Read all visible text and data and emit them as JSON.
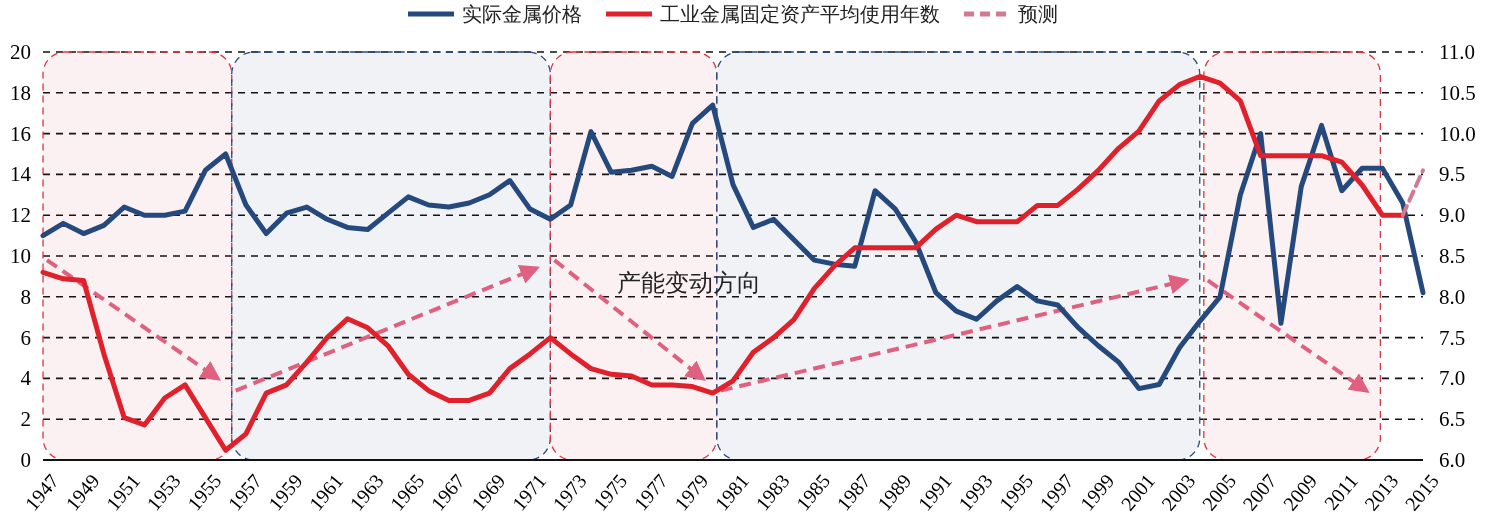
{
  "chart_data": {
    "type": "line",
    "legend": "top",
    "grid": "y",
    "annotations": [
      "产能变动方向"
    ],
    "x": [
      1947,
      1948,
      1949,
      1950,
      1951,
      1952,
      1953,
      1954,
      1955,
      1956,
      1957,
      1958,
      1959,
      1960,
      1961,
      1962,
      1963,
      1964,
      1965,
      1966,
      1967,
      1968,
      1969,
      1970,
      1971,
      1972,
      1973,
      1974,
      1975,
      1976,
      1977,
      1978,
      1979,
      1980,
      1981,
      1982,
      1983,
      1984,
      1985,
      1986,
      1987,
      1988,
      1989,
      1990,
      1991,
      1992,
      1993,
      1994,
      1995,
      1996,
      1997,
      1998,
      1999,
      2000,
      2001,
      2002,
      2003,
      2004,
      2005,
      2006,
      2007,
      2008,
      2009,
      2010,
      2011,
      2012,
      2013,
      2014,
      2015
    ],
    "xlim": [
      1947,
      2015
    ],
    "xticks": [
      1947,
      1949,
      1951,
      1953,
      1955,
      1957,
      1959,
      1961,
      1963,
      1965,
      1967,
      1969,
      1971,
      1973,
      1975,
      1977,
      1979,
      1981,
      1983,
      1985,
      1987,
      1989,
      1991,
      1993,
      1995,
      1997,
      1999,
      2001,
      2003,
      2005,
      2007,
      2009,
      2011,
      2013,
      2015
    ],
    "ylim": [
      0,
      20
    ],
    "yticks": [
      0,
      2,
      4,
      6,
      8,
      10,
      12,
      14,
      16,
      18,
      20
    ],
    "y2lim": [
      6,
      11
    ],
    "y2ticks": [
      {
        "value": 6,
        "label": "6.0"
      },
      {
        "value": 6.5,
        "label": "6.5"
      },
      {
        "value": 7,
        "label": "7.0"
      },
      {
        "value": 7.5,
        "label": "7.5"
      },
      {
        "value": 8,
        "label": "8.0"
      },
      {
        "value": 8.5,
        "label": "8.5"
      },
      {
        "value": 9,
        "label": "9.0"
      },
      {
        "value": 9.5,
        "label": "9.5"
      },
      {
        "value": 10,
        "label": "10.0"
      },
      {
        "value": 10.5,
        "label": "10.5"
      },
      {
        "value": 11,
        "label": "11.0"
      }
    ],
    "bands": [
      {
        "axis": "x",
        "from": 1947,
        "to": 1956.3,
        "color": "#d9364a"
      },
      {
        "axis": "x",
        "from": 1956.3,
        "to": 1972,
        "color": "#2a4a7a"
      },
      {
        "axis": "x",
        "from": 1972,
        "to": 1980.2,
        "color": "#d9364a"
      },
      {
        "axis": "x",
        "from": 1980.2,
        "to": 2004,
        "color": "#2a4a7a"
      },
      {
        "axis": "x",
        "from": 2004.2,
        "to": 2012.9,
        "color": "#d9364a"
      }
    ],
    "series": [
      {
        "name": "实际金属价格",
        "color": "#25497c",
        "values": [
          11.0,
          11.6,
          11.1,
          11.5,
          12.4,
          12.0,
          12.0,
          12.2,
          14.2,
          15.0,
          12.5,
          11.1,
          12.1,
          12.4,
          11.8,
          11.4,
          11.3,
          12.1,
          12.9,
          12.5,
          12.4,
          12.6,
          13.0,
          13.7,
          12.3,
          11.8,
          12.5,
          16.1,
          14.1,
          14.2,
          14.4,
          13.9,
          16.5,
          17.4,
          13.5,
          11.4,
          11.8,
          10.8,
          9.8,
          9.6,
          9.5,
          13.2,
          12.3,
          10.7,
          8.2,
          7.3,
          6.9,
          7.8,
          8.5,
          7.8,
          7.6,
          6.5,
          5.6,
          4.8,
          3.5,
          3.7,
          5.5,
          6.8,
          8.0,
          13.0,
          16.0,
          6.7,
          13.4,
          16.4,
          13.2,
          14.3,
          14.3,
          12.6,
          8.2
        ]
      },
      {
        "name": "工业金属固定资产平均使用年数",
        "color": "#e0202a",
        "axis": "y2",
        "values": [
          8.3,
          8.22,
          8.2,
          7.3,
          6.52,
          6.43,
          6.76,
          6.92,
          6.52,
          6.12,
          6.32,
          6.82,
          6.92,
          7.2,
          7.5,
          7.73,
          7.62,
          7.4,
          7.05,
          6.85,
          6.73,
          6.73,
          6.82,
          7.12,
          7.3,
          7.5,
          7.3,
          7.12,
          7.05,
          7.03,
          6.92,
          6.92,
          6.9,
          6.82,
          6.97,
          7.32,
          7.5,
          7.72,
          8.1,
          8.38,
          8.6,
          8.6,
          8.6,
          8.6,
          8.83,
          9.0,
          8.92,
          8.92,
          8.92,
          9.12,
          9.12,
          9.32,
          9.55,
          9.82,
          10.03,
          10.4,
          10.6,
          10.7,
          10.62,
          10.4,
          9.73,
          9.73,
          9.73,
          9.73,
          9.65,
          9.37,
          9.0,
          9.0,
          null
        ]
      },
      {
        "name": "预测",
        "color": "#d4798f",
        "axis": "y2",
        "line_style": "dashed",
        "x": [
          2014,
          2015
        ],
        "values": [
          9.0,
          9.55
        ]
      }
    ]
  }
}
